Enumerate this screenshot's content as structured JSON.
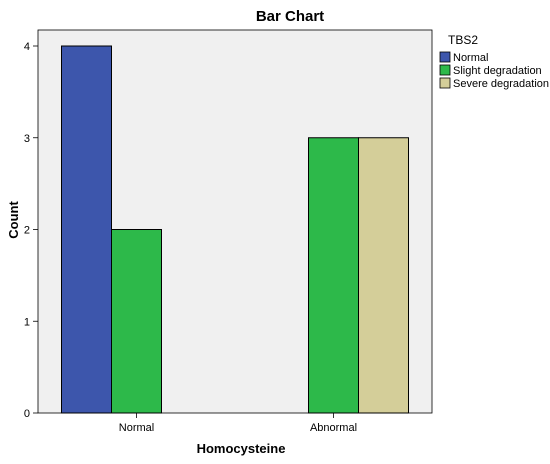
{
  "chart_data": {
    "type": "bar",
    "title": "Bar Chart",
    "xlabel": "Homocysteine",
    "ylabel": "Count",
    "categories": [
      "Normal",
      "Abnormal"
    ],
    "legend_title": "TBS2",
    "legend_position": "right",
    "ylim": [
      0,
      4
    ],
    "yticks": [
      "0",
      "1",
      "2",
      "3",
      "4"
    ],
    "grid": false,
    "series": [
      {
        "name": "Normal",
        "values": [
          4,
          null
        ],
        "color": "#3d56ac"
      },
      {
        "name": "Slight degradation",
        "values": [
          2,
          3
        ],
        "color": "#2db94a"
      },
      {
        "name": "Severe degradation",
        "values": [
          null,
          3
        ],
        "color": "#d4ce99"
      }
    ]
  }
}
